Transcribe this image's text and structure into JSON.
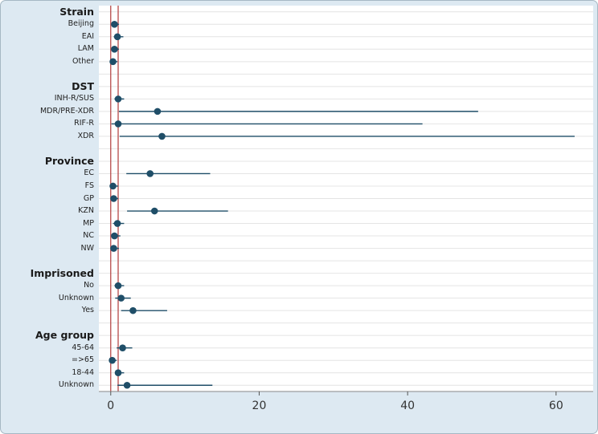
{
  "chart_data": {
    "type": "scatter",
    "subtype": "forest-plot",
    "title": "",
    "xlabel": "",
    "ylabel": "",
    "x_ticks": [
      0,
      20,
      40,
      60
    ],
    "x_range": [
      -1.6,
      65
    ],
    "grid": "horizontal",
    "reference_lines": [
      0,
      1
    ],
    "colors": {
      "marker": "#1f4e68",
      "ci": "#1f4e68",
      "reference": "#b03a3a",
      "grid": "#e4e4e4",
      "axis": "#888888",
      "frame_bg": "#dde9f2",
      "plot_bg": "#ffffff"
    },
    "groups": [
      {
        "label": "Strain",
        "items": [
          {
            "label": "Beijing",
            "estimate": 0.5,
            "ci_low": 0.2,
            "ci_high": 1.1
          },
          {
            "label": "EAI",
            "estimate": 0.9,
            "ci_low": 0.4,
            "ci_high": 1.7
          },
          {
            "label": "LAM",
            "estimate": 0.5,
            "ci_low": 0.2,
            "ci_high": 1.1
          },
          {
            "label": "Other",
            "estimate": 0.3,
            "ci_low": 0.1,
            "ci_high": 0.9
          }
        ]
      },
      {
        "label": "DST",
        "items": [
          {
            "label": "INH-R/SUS",
            "estimate": 1.0,
            "ci_low": 0.5,
            "ci_high": 1.8
          },
          {
            "label": "MDR/PRE-XDR",
            "estimate": 6.3,
            "ci_low": 1.1,
            "ci_high": 49.5
          },
          {
            "label": "RIF-R",
            "estimate": 1.0,
            "ci_low": 0.1,
            "ci_high": 42.0
          },
          {
            "label": "XDR",
            "estimate": 6.9,
            "ci_low": 1.2,
            "ci_high": 62.5
          }
        ]
      },
      {
        "label": "Province",
        "items": [
          {
            "label": "EC",
            "estimate": 5.3,
            "ci_low": 2.1,
            "ci_high": 13.4
          },
          {
            "label": "FS",
            "estimate": 0.3,
            "ci_low": 0.1,
            "ci_high": 1.0
          },
          {
            "label": "GP",
            "estimate": 0.4,
            "ci_low": 0.2,
            "ci_high": 1.0
          },
          {
            "label": "KZN",
            "estimate": 5.9,
            "ci_low": 2.2,
            "ci_high": 15.8
          },
          {
            "label": "MP",
            "estimate": 0.9,
            "ci_low": 0.3,
            "ci_high": 1.8
          },
          {
            "label": "NC",
            "estimate": 0.5,
            "ci_low": 0.1,
            "ci_high": 1.3
          },
          {
            "label": "NW",
            "estimate": 0.4,
            "ci_low": 0.1,
            "ci_high": 1.1
          }
        ]
      },
      {
        "label": "Imprisoned",
        "items": [
          {
            "label": "No",
            "estimate": 1.0,
            "ci_low": 0.5,
            "ci_high": 1.8
          },
          {
            "label": "Unknown",
            "estimate": 1.4,
            "ci_low": 0.6,
            "ci_high": 2.7
          },
          {
            "label": "Yes",
            "estimate": 3.0,
            "ci_low": 1.4,
            "ci_high": 7.6
          }
        ]
      },
      {
        "label": "Age group",
        "items": [
          {
            "label": "45-64",
            "estimate": 1.6,
            "ci_low": 0.8,
            "ci_high": 2.9
          },
          {
            "label": "=>65",
            "estimate": 0.2,
            "ci_low": 0.05,
            "ci_high": 0.8
          },
          {
            "label": "18-44",
            "estimate": 1.0,
            "ci_low": 0.6,
            "ci_high": 1.8
          },
          {
            "label": "Unknown",
            "estimate": 2.2,
            "ci_low": 0.9,
            "ci_high": 13.7
          }
        ]
      }
    ]
  }
}
